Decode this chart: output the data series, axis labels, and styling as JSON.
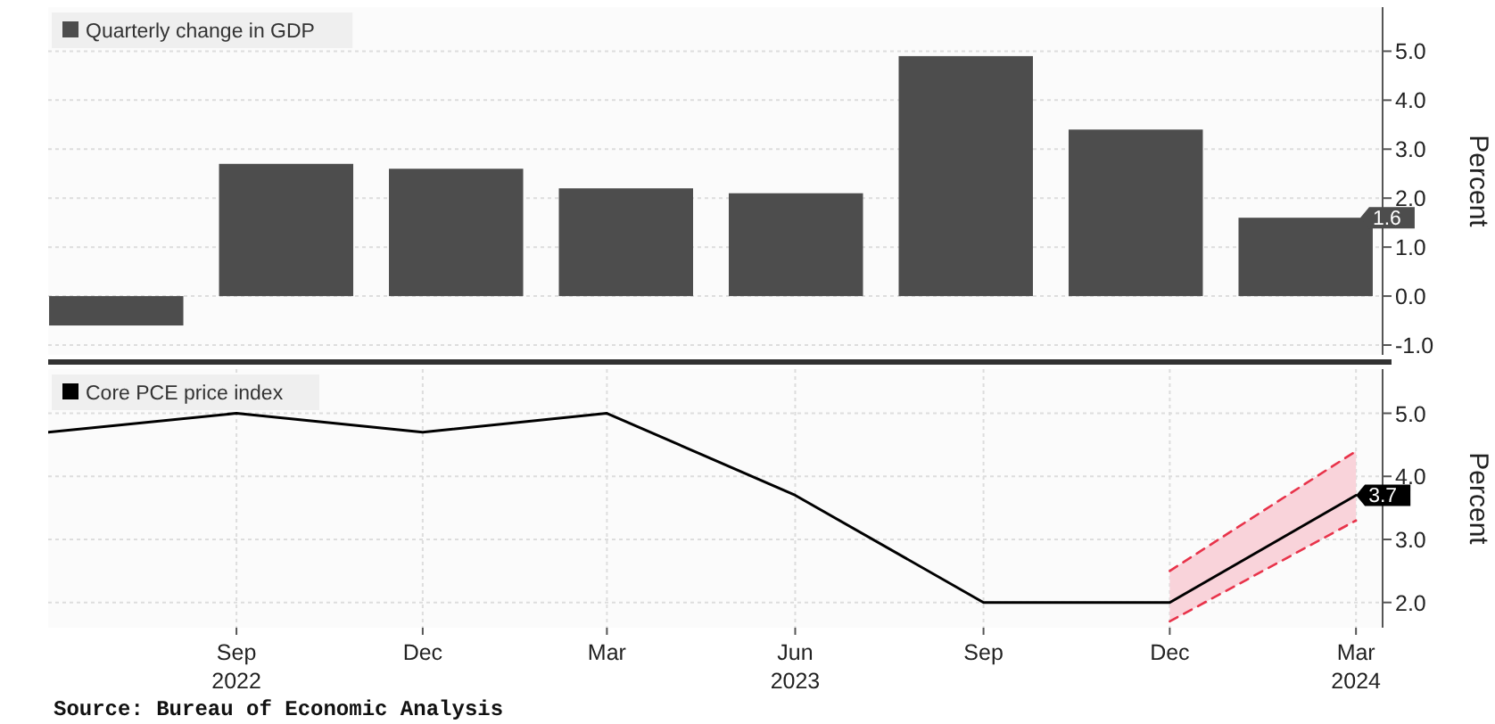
{
  "chart_data": [
    {
      "type": "bar",
      "categories": [
        null,
        null,
        null,
        null,
        null,
        null,
        null,
        null
      ],
      "series": [
        {
          "name": "Quarterly change in GDP",
          "color": "#4d4d4d",
          "values": [
            -0.6,
            2.7,
            2.6,
            2.2,
            2.1,
            4.9,
            3.4,
            1.6
          ],
          "value_labels": [
            null,
            null,
            null,
            null,
            null,
            null,
            null,
            "1.6"
          ]
        }
      ],
      "ylabel": "Percent",
      "ylim": [
        -1.2,
        5.9
      ],
      "yticks": [
        {
          "value": -1,
          "label": "-1.0"
        },
        {
          "value": 0,
          "label": "0.0"
        },
        {
          "value": 1,
          "label": "1.0"
        },
        {
          "value": 2,
          "label": "2.0"
        },
        {
          "value": 3,
          "label": "3.0"
        },
        {
          "value": 4,
          "label": "4.0"
        },
        {
          "value": 5,
          "label": "5.0"
        }
      ],
      "grid": "y",
      "legend": "top left",
      "tick_labels": "y"
    },
    {
      "type": "line",
      "x": [
        "2022-06-01",
        "2022-09-01",
        "2022-12-01",
        "2023-03-01",
        "2023-06-01",
        "2023-09-01",
        "2023-12-01",
        "2024-03-01"
      ],
      "series": [
        {
          "name": "Core PCE price index",
          "color": "#000000",
          "values": [
            4.7,
            5.0,
            4.7,
            5.0,
            3.7,
            2.0,
            2.0,
            3.7
          ],
          "lower": [
            null,
            null,
            null,
            null,
            null,
            null,
            1.7,
            3.3
          ],
          "upper": [
            null,
            null,
            null,
            null,
            null,
            null,
            2.5,
            4.4
          ],
          "value_labels": [
            null,
            null,
            null,
            null,
            null,
            null,
            null,
            "3.7"
          ]
        },
        {
          "color": "#e8334a",
          "line_style": "dashed",
          "values": [
            null,
            null,
            null,
            null,
            null,
            null,
            2.5,
            4.4
          ]
        },
        {
          "color": "#e8334a",
          "line_style": "dashed",
          "values": [
            null,
            null,
            null,
            null,
            null,
            null,
            1.7,
            3.3
          ]
        }
      ],
      "ylabel": "Percent",
      "xlim": [
        "2022-06-01",
        "2024-03-14"
      ],
      "ylim": [
        1.6,
        5.7
      ],
      "xticks": [
        {
          "value": "2022-09-01",
          "label": "Sep\n2022"
        },
        {
          "value": "2022-12-01",
          "label": "Dec"
        },
        {
          "value": "2023-03-01",
          "label": "Mar"
        },
        {
          "value": "2023-06-01",
          "label": "Jun\n2023"
        },
        {
          "value": "2023-09-01",
          "label": "Sep"
        },
        {
          "value": "2023-12-01",
          "label": "Dec"
        },
        {
          "value": "2024-03-01",
          "label": "Mar\n2024"
        }
      ],
      "yticks": [
        {
          "value": 2,
          "label": "2.0"
        },
        {
          "value": 3,
          "label": "3.0"
        },
        {
          "value": 4,
          "label": "4.0"
        },
        {
          "value": 5,
          "label": "5.0"
        }
      ],
      "grid": true,
      "legend": "top left",
      "marker": "none",
      "line_style": "solid",
      "annotations": [
        "Source: Bureau of Economic Analysis"
      ]
    }
  ]
}
